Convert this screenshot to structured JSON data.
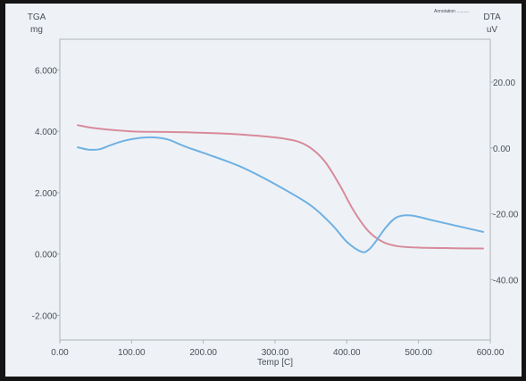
{
  "header_note": "Annotation   ..........",
  "chart_data": {
    "type": "line",
    "xlabel": "Temp  [C]",
    "xlim": [
      0,
      600
    ],
    "x_ticks": [
      "0.00",
      "100.00",
      "200.00",
      "300.00",
      "400.00",
      "500.00",
      "600.00"
    ],
    "left_axis": {
      "label_top": "TGA",
      "label_unit": "mg",
      "ylim": [
        -2.8,
        7.0
      ],
      "ticks": [
        "6.000",
        "4.000",
        "2.000",
        "0.000",
        "-2.000"
      ]
    },
    "right_axis": {
      "label_top": "DTA",
      "label_unit": "uV",
      "ylim": [
        -58.3,
        33.0
      ],
      "ticks": [
        "20.00",
        "0.00",
        "-20.00",
        "-40.00"
      ]
    },
    "series": [
      {
        "axis": "left",
        "color": "#d88a9b",
        "x": [
          25,
          50,
          100,
          150,
          200,
          250,
          300,
          330,
          350,
          370,
          390,
          410,
          430,
          450,
          470,
          500,
          550,
          590
        ],
        "y": [
          4.2,
          4.1,
          4.0,
          3.98,
          3.95,
          3.9,
          3.8,
          3.68,
          3.45,
          3.0,
          2.25,
          1.4,
          0.75,
          0.4,
          0.26,
          0.21,
          0.19,
          0.18
        ]
      },
      {
        "axis": "right",
        "color": "#6fb1e3",
        "x": [
          25,
          40,
          55,
          70,
          90,
          110,
          130,
          150,
          175,
          200,
          250,
          300,
          350,
          380,
          400,
          420,
          430,
          440,
          455,
          470,
          490,
          520,
          560,
          590
        ],
        "y": [
          0.2,
          -0.5,
          -0.4,
          0.8,
          2.2,
          3.0,
          3.2,
          2.6,
          0.4,
          -1.5,
          -5.5,
          -11.0,
          -17.5,
          -23.5,
          -28.5,
          -31.5,
          -31.0,
          -28.5,
          -24.0,
          -21.0,
          -20.5,
          -22.0,
          -24.0,
          -25.5
        ]
      }
    ]
  }
}
